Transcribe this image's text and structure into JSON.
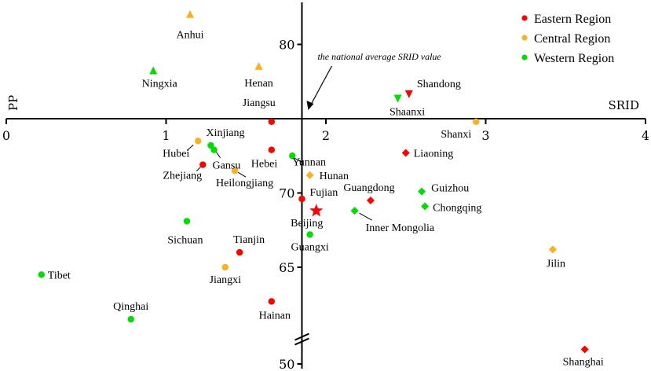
{
  "chart_data": {
    "type": "scatter",
    "xlabel": "SRID",
    "ylabel": "PP",
    "xlim": [
      0,
      4
    ],
    "ylim": [
      50,
      85
    ],
    "x_ticks": [
      "0",
      "1",
      "2",
      "3",
      "4"
    ],
    "y_ticks": [
      "50",
      "65",
      "70",
      "80"
    ],
    "axis_break_on_y": true,
    "crossing": {
      "x": 1.85,
      "y": 75
    },
    "annotation": "the national average SRID value",
    "legend": [
      {
        "name": "Eastern Region",
        "color": "#ff0000"
      },
      {
        "name": "Central Region",
        "color": "#ffb020"
      },
      {
        "name": "Western Region",
        "color": "#00dd00"
      }
    ],
    "legend_position": "top-right",
    "points": [
      {
        "label": "Anhui",
        "x": 1.15,
        "y": 82.0,
        "region": "Central Region",
        "marker": "triangle-up"
      },
      {
        "label": "Ningxia",
        "x": 0.92,
        "y": 78.2,
        "region": "Western Region",
        "marker": "triangle-up"
      },
      {
        "label": "Henan",
        "x": 1.58,
        "y": 78.5,
        "region": "Central Region",
        "marker": "triangle-up"
      },
      {
        "label": "Shandong",
        "x": 2.52,
        "y": 76.7,
        "region": "Eastern Region",
        "marker": "triangle-down"
      },
      {
        "label": "Shaanxi",
        "x": 2.45,
        "y": 76.4,
        "region": "Western Region",
        "marker": "triangle-down"
      },
      {
        "label": "Jiangsu",
        "x": 1.66,
        "y": 74.8,
        "region": "Eastern Region",
        "marker": "circle"
      },
      {
        "label": "Shanxi",
        "x": 2.94,
        "y": 74.8,
        "region": "Central Region",
        "marker": "circle"
      },
      {
        "label": "Xinjiang",
        "x": 1.28,
        "y": 73.2,
        "region": "Western Region",
        "marker": "circle"
      },
      {
        "label": "Hubei",
        "x": 1.2,
        "y": 73.5,
        "region": "Central Region",
        "marker": "circle"
      },
      {
        "label": "Gansu",
        "x": 1.3,
        "y": 72.9,
        "region": "Western Region",
        "marker": "circle"
      },
      {
        "label": "Hebei",
        "x": 1.66,
        "y": 72.9,
        "region": "Eastern Region",
        "marker": "circle"
      },
      {
        "label": "Yunnan",
        "x": 1.79,
        "y": 72.5,
        "region": "Western Region",
        "marker": "circle"
      },
      {
        "label": "Liaoning",
        "x": 2.5,
        "y": 72.7,
        "region": "Eastern Region",
        "marker": "diamond"
      },
      {
        "label": "Zhejiang",
        "x": 1.23,
        "y": 71.9,
        "region": "Eastern Region",
        "marker": "circle"
      },
      {
        "label": "Heilongjiang",
        "x": 1.43,
        "y": 71.5,
        "region": "Central Region",
        "marker": "circle"
      },
      {
        "label": "Hunan",
        "x": 1.9,
        "y": 71.2,
        "region": "Central Region",
        "marker": "diamond"
      },
      {
        "label": "Guizhou",
        "x": 2.6,
        "y": 70.1,
        "region": "Western Region",
        "marker": "diamond"
      },
      {
        "label": "Fujian",
        "x": 1.85,
        "y": 69.6,
        "region": "Eastern Region",
        "marker": "circle"
      },
      {
        "label": "Guangdong",
        "x": 2.28,
        "y": 69.5,
        "region": "Eastern Region",
        "marker": "diamond"
      },
      {
        "label": "Chongqing",
        "x": 2.62,
        "y": 69.1,
        "region": "Western Region",
        "marker": "diamond"
      },
      {
        "label": "Beijing",
        "x": 1.94,
        "y": 68.8,
        "region": "Eastern Region",
        "marker": "star"
      },
      {
        "label": "Inner Mongolia",
        "x": 2.18,
        "y": 68.8,
        "region": "Western Region",
        "marker": "diamond"
      },
      {
        "label": "Sichuan",
        "x": 1.13,
        "y": 68.1,
        "region": "Western Region",
        "marker": "circle"
      },
      {
        "label": "Guangxi",
        "x": 1.9,
        "y": 67.2,
        "region": "Western Region",
        "marker": "circle"
      },
      {
        "label": "Tianjin",
        "x": 1.46,
        "y": 66.0,
        "region": "Eastern Region",
        "marker": "circle"
      },
      {
        "label": "Jilin",
        "x": 3.42,
        "y": 66.2,
        "region": "Central Region",
        "marker": "diamond"
      },
      {
        "label": "Jiangxi",
        "x": 1.37,
        "y": 65.0,
        "region": "Central Region",
        "marker": "circle"
      },
      {
        "label": "Tibet",
        "x": 0.22,
        "y": 64.5,
        "region": "Western Region",
        "marker": "circle"
      },
      {
        "label": "Hainan",
        "x": 1.66,
        "y": 62.7,
        "region": "Eastern Region",
        "marker": "circle"
      },
      {
        "label": "Qinghai",
        "x": 0.78,
        "y": 61.5,
        "region": "Western Region",
        "marker": "circle"
      },
      {
        "label": "Shanghai",
        "x": 3.62,
        "y": 53.5,
        "region": "Eastern Region",
        "marker": "diamond"
      }
    ]
  }
}
